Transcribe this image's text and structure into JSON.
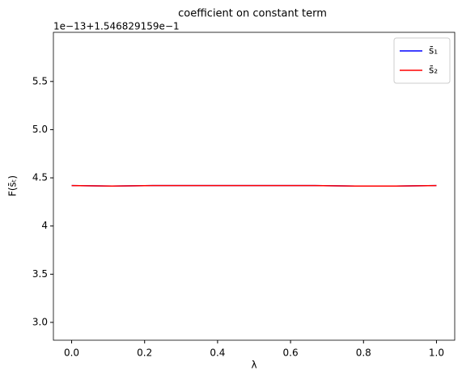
{
  "chart_data": {
    "type": "line",
    "title": "coefficient on constant term",
    "y_offset_label": "1e−13+1.546829159e−1",
    "x_label": "λ",
    "y_label": "F(s̄ₜ)",
    "x": [
      0,
      0.1111,
      0.2222,
      0.3333,
      0.4444,
      0.5556,
      0.6667,
      0.7778,
      0.8889,
      1
    ],
    "series": [
      {
        "name": "s̄₁",
        "color": "#0000ff",
        "values": [
          4.42,
          4.415,
          4.42,
          4.42,
          4.42,
          4.42,
          4.42,
          4.415,
          4.415,
          4.42
        ]
      },
      {
        "name": "s̄₂",
        "color": "#ff0000",
        "values": [
          4.42,
          4.415,
          4.42,
          4.42,
          4.42,
          4.42,
          4.42,
          4.415,
          4.415,
          4.42
        ]
      }
    ],
    "xlim": [
      -0.05,
      1.05
    ],
    "ylim": [
      2.815,
      6.01
    ],
    "xticks": [
      {
        "value": 0,
        "label": "0.0"
      },
      0.2,
      0.4,
      0.6,
      0.8,
      {
        "value": 1,
        "label": "1.0"
      }
    ],
    "yticks": [
      {
        "value": 3,
        "label": "3.0"
      },
      3.5,
      4,
      4.5,
      {
        "value": 5,
        "label": "5.0"
      },
      5.5
    ],
    "legend": "upper right"
  }
}
